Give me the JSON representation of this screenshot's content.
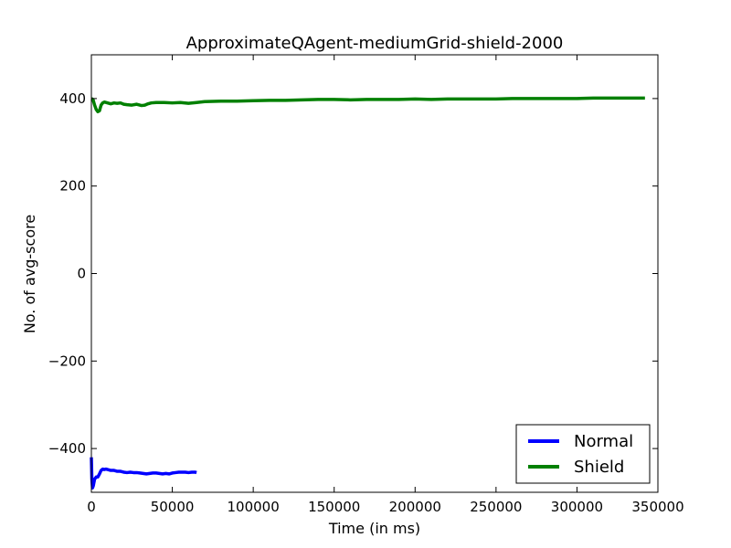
{
  "chart_data": {
    "type": "line",
    "title": "ApproximateQAgent-mediumGrid-shield-2000",
    "xlabel": "Time (in ms)",
    "ylabel": "No. of avg-score",
    "xlim": [
      0,
      350000
    ],
    "ylim": [
      -500,
      500
    ],
    "x_ticks": [
      0,
      50000,
      100000,
      150000,
      200000,
      250000,
      300000,
      350000
    ],
    "x_tick_labels": [
      "0",
      "50000",
      "100000",
      "150000",
      "200000",
      "250000",
      "300000",
      "350000"
    ],
    "y_ticks": [
      -400,
      -200,
      0,
      200,
      400
    ],
    "y_tick_labels": [
      "−400",
      "−200",
      "0",
      "200",
      "400"
    ],
    "grid": false,
    "legend_position": "lower-right",
    "series": [
      {
        "name": "Normal",
        "color": "#0000ff",
        "x": [
          0,
          300,
          700,
          1200,
          2000,
          3000,
          4000,
          5000,
          6000,
          7000,
          8000,
          9000,
          10000,
          12000,
          14000,
          16000,
          18000,
          20000,
          22000,
          24000,
          26000,
          28000,
          30000,
          32000,
          34000,
          36000,
          38000,
          40000,
          42000,
          44000,
          46000,
          48000,
          50000,
          52000,
          54000,
          56000,
          58000,
          60000,
          62000,
          64000,
          65000
        ],
        "y": [
          -420,
          -470,
          -490,
          -485,
          -470,
          -465,
          -465,
          -458,
          -450,
          -447,
          -448,
          -447,
          -448,
          -450,
          -450,
          -452,
          -452,
          -454,
          -455,
          -454,
          -455,
          -455,
          -456,
          -457,
          -458,
          -457,
          -456,
          -456,
          -457,
          -458,
          -457,
          -458,
          -456,
          -455,
          -454,
          -454,
          -454,
          -455,
          -454,
          -454,
          -455
        ]
      },
      {
        "name": "Shield",
        "color": "#008000",
        "x": [
          0,
          1000,
          2000,
          3000,
          4000,
          5000,
          6000,
          7000,
          8000,
          10000,
          12000,
          14000,
          16000,
          18000,
          20000,
          22000,
          25000,
          28000,
          31000,
          33000,
          35000,
          37000,
          40000,
          45000,
          50000,
          55000,
          60000,
          65000,
          70000,
          80000,
          90000,
          100000,
          110000,
          120000,
          130000,
          140000,
          150000,
          160000,
          170000,
          180000,
          190000,
          200000,
          210000,
          220000,
          230000,
          240000,
          250000,
          260000,
          270000,
          280000,
          290000,
          300000,
          310000,
          320000,
          330000,
          340000,
          342000
        ],
        "y": [
          400,
          398,
          385,
          375,
          370,
          372,
          385,
          390,
          392,
          390,
          388,
          390,
          389,
          390,
          387,
          386,
          385,
          387,
          384,
          385,
          388,
          390,
          391,
          391,
          390,
          391,
          389,
          391,
          393,
          394,
          394,
          395,
          396,
          396,
          397,
          398,
          398,
          397,
          398,
          398,
          398,
          399,
          398,
          399,
          399,
          399,
          399,
          400,
          400,
          400,
          400,
          400,
          401,
          401,
          401,
          401,
          401
        ]
      }
    ]
  }
}
